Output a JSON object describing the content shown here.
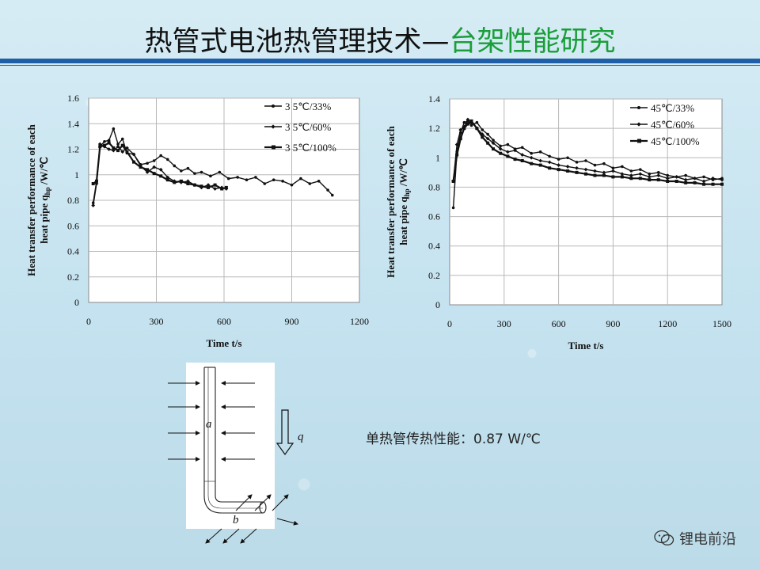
{
  "slide": {
    "title_main": "热管式电池热管理技术—",
    "title_accent": "台架性能研究",
    "caption": "单热管传热性能：0.87 W/℃",
    "watermark": "锂电前沿"
  },
  "diagram": {
    "label_a": "a",
    "label_b": "b",
    "label_q": "q"
  },
  "chart_data": [
    {
      "type": "line",
      "xlabel": "Time t/s",
      "ylabel_line1": "Heat  transfer performance of each",
      "ylabel_line2": "heat pipe  q",
      "ylabel_sub": "hp",
      "ylabel_unit": "/W/℃",
      "xlim": [
        0,
        1200
      ],
      "ylim": [
        0,
        1.6
      ],
      "xticks": [
        "0",
        "300",
        "600",
        "900",
        "1200"
      ],
      "yticks": [
        "0",
        "0.2",
        "0.4",
        "0.6",
        "0.8",
        "1",
        "1.2",
        "1.4",
        "1.6"
      ],
      "grid": true,
      "legend_position": "top-right",
      "series": [
        {
          "name": "3 5℃/33%",
          "marker": "circle",
          "x": [
            20,
            35,
            50,
            70,
            90,
            110,
            130,
            150,
            170,
            200,
            230,
            260,
            290,
            320,
            350,
            380,
            410,
            440,
            470,
            500,
            540,
            580,
            620,
            660,
            700,
            740,
            780,
            820,
            860,
            900,
            940,
            980,
            1020,
            1060,
            1080
          ],
          "y": [
            0.78,
            0.95,
            1.22,
            1.26,
            1.27,
            1.36,
            1.24,
            1.28,
            1.17,
            1.16,
            1.08,
            1.09,
            1.11,
            1.15,
            1.12,
            1.07,
            1.03,
            1.05,
            1.01,
            1.02,
            0.99,
            1.02,
            0.97,
            0.98,
            0.96,
            0.98,
            0.93,
            0.96,
            0.95,
            0.92,
            0.97,
            0.93,
            0.95,
            0.88,
            0.84
          ]
        },
        {
          "name": "3 5℃/60%",
          "marker": "diamond",
          "x": [
            20,
            35,
            50,
            70,
            90,
            110,
            130,
            150,
            170,
            200,
            230,
            260,
            290,
            320,
            350,
            380,
            410,
            440,
            470,
            500,
            530,
            560,
            590,
            610
          ],
          "y": [
            0.76,
            0.93,
            1.24,
            1.22,
            1.2,
            1.19,
            1.22,
            1.18,
            1.21,
            1.16,
            1.07,
            1.02,
            1.06,
            1.04,
            0.98,
            0.95,
            0.94,
            0.95,
            0.92,
            0.9,
            0.92,
            0.89,
            0.9,
            0.89
          ]
        },
        {
          "name": "3 5℃/100%",
          "marker": "square",
          "x": [
            20,
            35,
            50,
            70,
            90,
            110,
            130,
            150,
            170,
            200,
            230,
            260,
            290,
            320,
            350,
            380,
            410,
            440,
            470,
            500,
            530,
            560,
            590,
            610
          ],
          "y": [
            0.93,
            0.95,
            1.22,
            1.23,
            1.25,
            1.21,
            1.19,
            1.23,
            1.18,
            1.1,
            1.06,
            1.04,
            1.01,
            0.99,
            0.96,
            0.94,
            0.95,
            0.93,
            0.92,
            0.91,
            0.9,
            0.92,
            0.89,
            0.9
          ]
        }
      ]
    },
    {
      "type": "line",
      "xlabel": "Time  t/s",
      "ylabel_line1": "Heat  transfer performance of each",
      "ylabel_line2": "heat pipe  q",
      "ylabel_sub": "hp",
      "ylabel_unit": "/W/℃",
      "xlim": [
        0,
        1500
      ],
      "ylim": [
        0,
        1.4
      ],
      "xticks": [
        "0",
        "300",
        "600",
        "900",
        "1200",
        "1500"
      ],
      "yticks": [
        "0",
        "0.2",
        "0.4",
        "0.6",
        "0.8",
        "1",
        "1.2",
        "1.4"
      ],
      "grid": true,
      "legend_position": "top-right",
      "series": [
        {
          "name": "45℃/33%",
          "marker": "circle",
          "x": [
            20,
            40,
            60,
            80,
            100,
            120,
            150,
            180,
            210,
            240,
            280,
            320,
            360,
            400,
            450,
            500,
            550,
            600,
            650,
            700,
            750,
            800,
            850,
            900,
            950,
            1000,
            1050,
            1100,
            1150,
            1200,
            1250,
            1300,
            1350,
            1400,
            1450,
            1500
          ],
          "y": [
            0.66,
            1.04,
            1.17,
            1.24,
            1.25,
            1.22,
            1.24,
            1.19,
            1.16,
            1.12,
            1.08,
            1.09,
            1.06,
            1.07,
            1.03,
            1.04,
            1.01,
            0.99,
            1.0,
            0.97,
            0.98,
            0.95,
            0.96,
            0.93,
            0.94,
            0.91,
            0.92,
            0.89,
            0.9,
            0.88,
            0.87,
            0.88,
            0.86,
            0.87,
            0.85,
            0.86
          ]
        },
        {
          "name": "45℃/60%",
          "marker": "diamond",
          "x": [
            20,
            40,
            60,
            80,
            100,
            120,
            150,
            180,
            210,
            240,
            280,
            320,
            360,
            400,
            450,
            500,
            550,
            600,
            650,
            700,
            750,
            800,
            850,
            900,
            950,
            1000,
            1050,
            1100,
            1150,
            1200,
            1250,
            1300,
            1350,
            1400,
            1450,
            1500
          ],
          "y": [
            0.84,
            1.09,
            1.19,
            1.21,
            1.26,
            1.24,
            1.2,
            1.16,
            1.13,
            1.1,
            1.06,
            1.04,
            1.05,
            1.02,
            1.0,
            0.98,
            0.97,
            0.95,
            0.94,
            0.93,
            0.92,
            0.91,
            0.9,
            0.91,
            0.89,
            0.88,
            0.89,
            0.87,
            0.88,
            0.86,
            0.87,
            0.85,
            0.86,
            0.84,
            0.86,
            0.85
          ]
        },
        {
          "name": "45℃/100%",
          "marker": "square",
          "x": [
            20,
            40,
            60,
            80,
            100,
            120,
            150,
            180,
            210,
            240,
            280,
            320,
            360,
            400,
            450,
            500,
            550,
            600,
            650,
            700,
            750,
            800,
            850,
            900,
            950,
            1000,
            1050,
            1100,
            1150,
            1200,
            1250,
            1300,
            1350,
            1400,
            1450,
            1500
          ],
          "y": [
            0.84,
            1.02,
            1.13,
            1.2,
            1.23,
            1.25,
            1.2,
            1.14,
            1.1,
            1.06,
            1.03,
            1.01,
            0.99,
            0.98,
            0.96,
            0.95,
            0.93,
            0.92,
            0.91,
            0.9,
            0.89,
            0.88,
            0.88,
            0.87,
            0.87,
            0.86,
            0.86,
            0.85,
            0.85,
            0.84,
            0.84,
            0.83,
            0.83,
            0.82,
            0.82,
            0.82
          ]
        }
      ]
    }
  ]
}
